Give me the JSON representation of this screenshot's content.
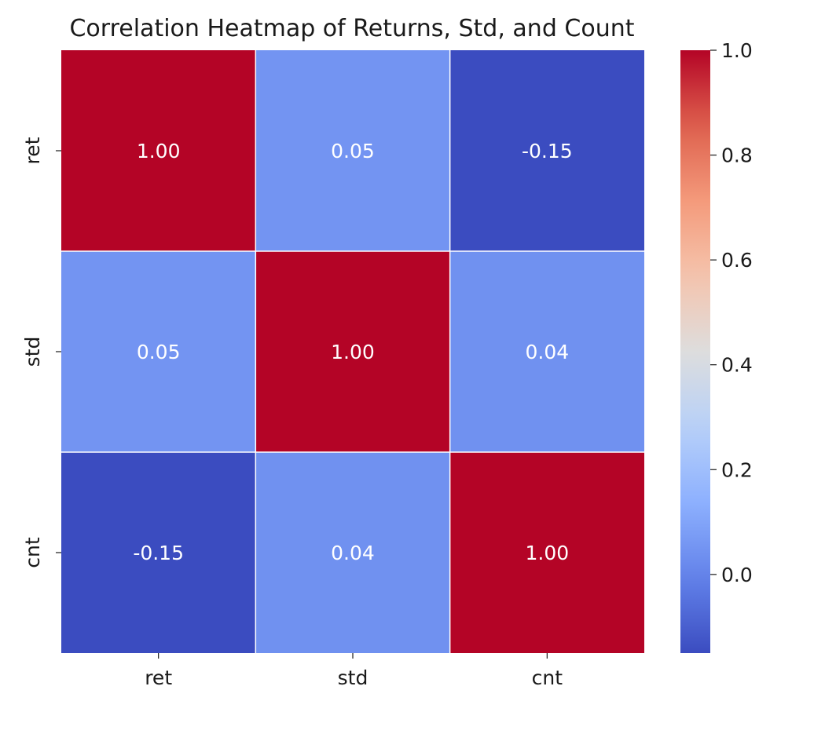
{
  "chart_data": {
    "type": "heatmap",
    "title": "Correlation Heatmap of Returns, Std, and Count",
    "xlabel": "",
    "ylabel": "",
    "x_categories": [
      "ret",
      "std",
      "cnt"
    ],
    "y_categories": [
      "ret",
      "std",
      "cnt"
    ],
    "values": [
      [
        1.0,
        0.05,
        -0.15
      ],
      [
        0.05,
        1.0,
        0.04
      ],
      [
        -0.15,
        0.04,
        1.0
      ]
    ],
    "value_labels": [
      [
        "1.00",
        "0.05",
        "-0.15"
      ],
      [
        "0.05",
        "1.00",
        "0.04"
      ],
      [
        "-0.15",
        "0.04",
        "1.00"
      ]
    ],
    "colormap": "coolwarm",
    "vmin": -0.15,
    "vmax": 1.0,
    "colorbar": {
      "ticks": [
        1.0,
        0.8,
        0.6,
        0.4,
        0.2,
        0.0
      ],
      "tick_labels": [
        "1.0",
        "0.8",
        "0.6",
        "0.4",
        "0.2",
        "0.0"
      ],
      "placement": "right"
    },
    "grid_lines": true,
    "grid_color": "#ffffff",
    "annotation_color": "#ffffff"
  }
}
